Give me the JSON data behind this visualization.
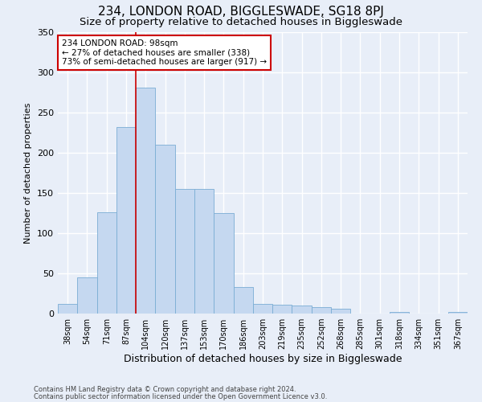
{
  "title": "234, LONDON ROAD, BIGGLESWADE, SG18 8PJ",
  "subtitle": "Size of property relative to detached houses in Biggleswade",
  "xlabel": "Distribution of detached houses by size in Biggleswade",
  "ylabel": "Number of detached properties",
  "categories": [
    "38sqm",
    "54sqm",
    "71sqm",
    "87sqm",
    "104sqm",
    "120sqm",
    "137sqm",
    "153sqm",
    "170sqm",
    "186sqm",
    "203sqm",
    "219sqm",
    "235sqm",
    "252sqm",
    "268sqm",
    "285sqm",
    "301sqm",
    "318sqm",
    "334sqm",
    "351sqm",
    "367sqm"
  ],
  "values": [
    12,
    45,
    126,
    232,
    281,
    210,
    155,
    155,
    125,
    33,
    12,
    11,
    10,
    8,
    6,
    0,
    0,
    2,
    0,
    0,
    2
  ],
  "bar_color": "#c5d8f0",
  "bar_edge_color": "#7aadd4",
  "bg_color": "#e8eef8",
  "grid_color": "#ffffff",
  "vline_x_idx": 4,
  "vline_color": "#cc0000",
  "annotation_text": "234 LONDON ROAD: 98sqm\n← 27% of detached houses are smaller (338)\n73% of semi-detached houses are larger (917) →",
  "annotation_box_color": "#ffffff",
  "annotation_box_edge": "#cc0000",
  "footer_line1": "Contains HM Land Registry data © Crown copyright and database right 2024.",
  "footer_line2": "Contains public sector information licensed under the Open Government Licence v3.0.",
  "ylim": [
    0,
    350
  ],
  "yticks": [
    0,
    50,
    100,
    150,
    200,
    250,
    300,
    350
  ],
  "title_fontsize": 11,
  "subtitle_fontsize": 9.5,
  "xlabel_fontsize": 9,
  "ylabel_fontsize": 8
}
